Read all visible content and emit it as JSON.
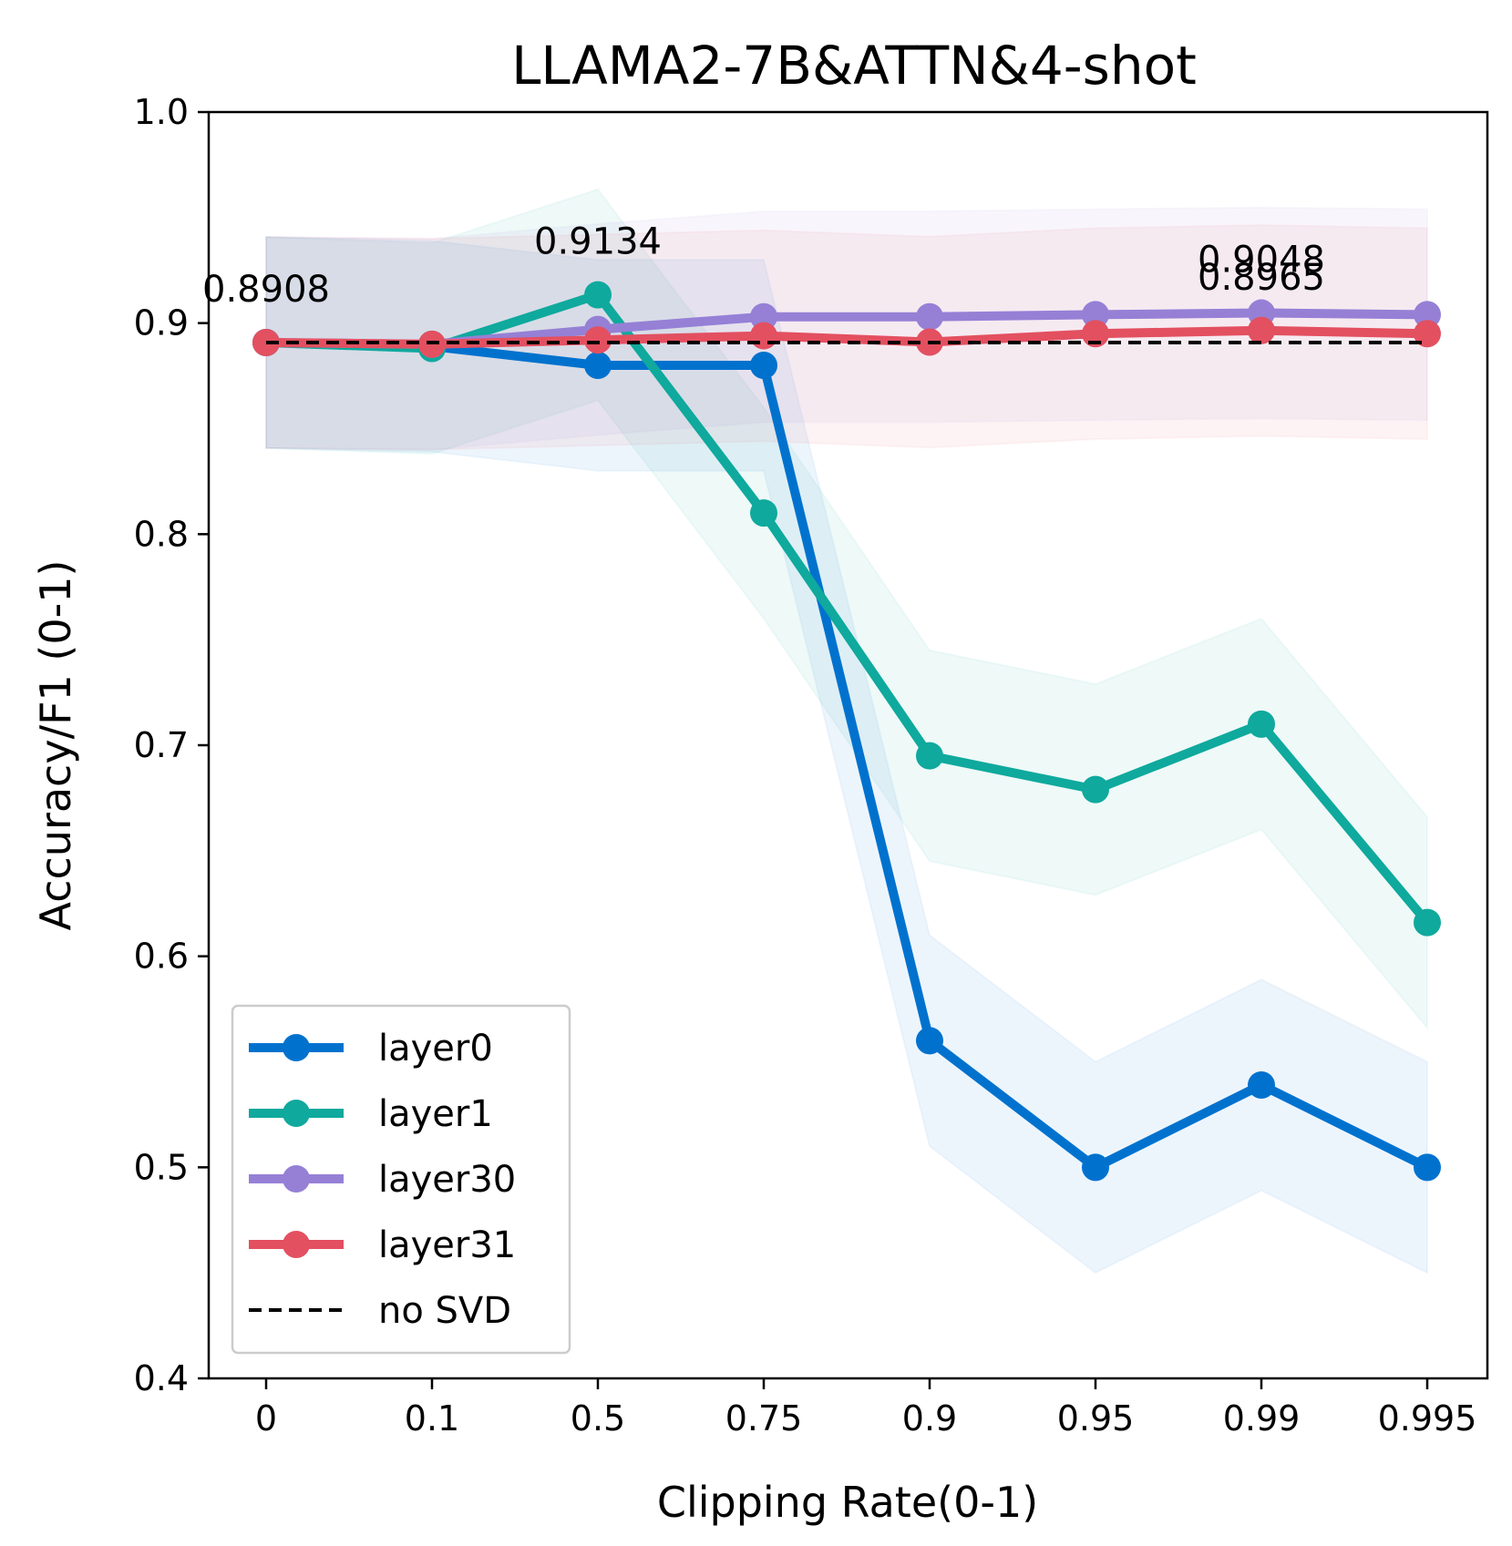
{
  "chart_data": {
    "type": "line",
    "title": "LLAMA2-7B&ATTN&4-shot",
    "xlabel": "Clipping Rate(0-1)",
    "ylabel": "Accuracy/F1 (0-1)",
    "categories": [
      "0",
      "0.1",
      "0.5",
      "0.75",
      "0.9",
      "0.95",
      "0.99",
      "0.995"
    ],
    "ylim": [
      0.4,
      1.0
    ],
    "yticks": [
      "0.4",
      "0.5",
      "0.6",
      "0.7",
      "0.8",
      "0.9",
      "1.0"
    ],
    "grid": false,
    "legend_position": "lower-left",
    "series": [
      {
        "name": "layer0",
        "color": "#0072CE",
        "values": [
          0.8908,
          0.889,
          0.88,
          0.88,
          0.56,
          0.5,
          0.539,
          0.5
        ],
        "band": 0.05
      },
      {
        "name": "layer1",
        "color": "#0FA99D",
        "values": [
          0.8908,
          0.888,
          0.9134,
          0.81,
          0.695,
          0.679,
          0.71,
          0.616
        ],
        "band": 0.05
      },
      {
        "name": "layer30",
        "color": "#9580D6",
        "values": [
          0.8908,
          0.89,
          0.897,
          0.903,
          0.903,
          0.904,
          0.9048,
          0.904
        ],
        "band": 0.05
      },
      {
        "name": "layer31",
        "color": "#E35060",
        "values": [
          0.8908,
          0.89,
          0.892,
          0.894,
          0.891,
          0.895,
          0.8965,
          0.895
        ],
        "band": 0.05
      },
      {
        "name": "no SVD",
        "color": "#000000",
        "style": "dashed",
        "values": [
          0.8908,
          0.8908,
          0.8908,
          0.8908,
          0.8908,
          0.8908,
          0.8908,
          0.8908
        ]
      }
    ],
    "annotations": [
      {
        "text": "0.8908",
        "x": "0",
        "y": 0.8908
      },
      {
        "text": "0.9134",
        "x": "0.5",
        "y": 0.9134
      },
      {
        "text": "0.9048",
        "x": "0.99",
        "y": 0.9048
      },
      {
        "text": "0.8965",
        "x": "0.99",
        "y": 0.8965
      }
    ]
  }
}
